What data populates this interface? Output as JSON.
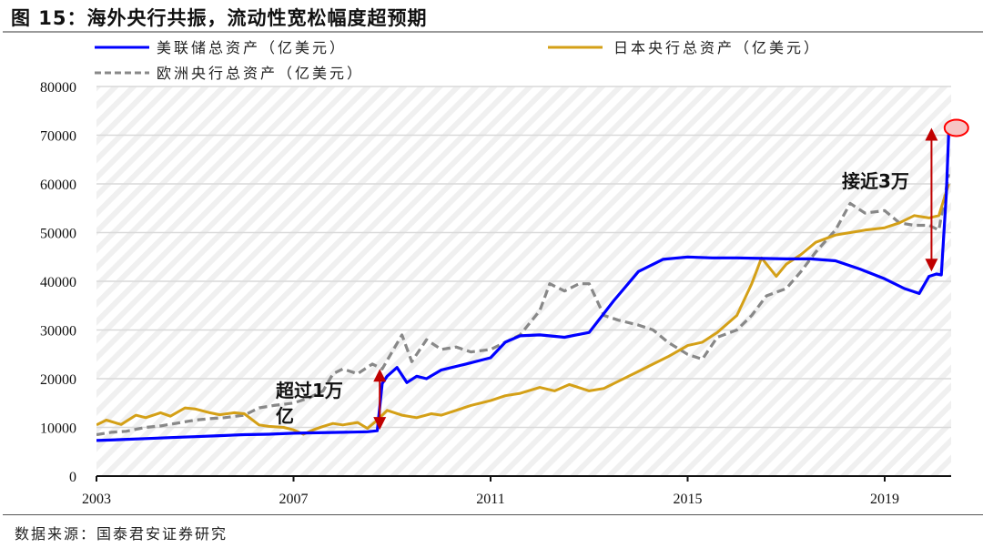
{
  "figure": {
    "title": "图 15：海外央行共振，流动性宽松幅度超预期",
    "source": "数据来源：国泰君安证券研究"
  },
  "colors": {
    "fed": "#0000ff",
    "boj": "#d4a017",
    "ecb": "#888888",
    "arrow": "#c00000",
    "highlight_stroke": "#ff0000",
    "highlight_fill": "#f7c4c4",
    "grid": "#d9d9d9",
    "hatch": "#ececec"
  },
  "chart_data": {
    "type": "line",
    "title": "海外央行共振，流动性宽松幅度超预期",
    "xlabel": "",
    "ylabel": "",
    "xlim": [
      2003,
      2020.35
    ],
    "ylim": [
      0,
      80000
    ],
    "yticks": [
      0,
      10000,
      20000,
      30000,
      40000,
      50000,
      60000,
      70000,
      80000
    ],
    "xticks": [
      2003,
      2007,
      2011,
      2015,
      2019
    ],
    "grid": true,
    "legend_position": "top",
    "series": [
      {
        "name": "美联储总资产（亿美元）",
        "key": "fed",
        "style": "solid",
        "x": [
          2003.0,
          2003.5,
          2004.0,
          2004.5,
          2005.0,
          2005.5,
          2006.0,
          2006.5,
          2007.0,
          2007.5,
          2008.0,
          2008.5,
          2008.7,
          2008.8,
          2008.9,
          2009.1,
          2009.3,
          2009.5,
          2009.7,
          2010.0,
          2010.5,
          2011.0,
          2011.3,
          2011.6,
          2012.0,
          2012.5,
          2013.0,
          2013.5,
          2014.0,
          2014.5,
          2015.0,
          2015.5,
          2016.0,
          2016.5,
          2017.0,
          2017.5,
          2018.0,
          2018.5,
          2019.0,
          2019.4,
          2019.7,
          2019.9,
          2020.05,
          2020.15,
          2020.25,
          2020.3
        ],
        "values": [
          7300,
          7500,
          7700,
          7900,
          8100,
          8300,
          8500,
          8600,
          8800,
          8900,
          9000,
          9100,
          9300,
          19000,
          20500,
          22300,
          19200,
          20500,
          20000,
          21800,
          23000,
          24300,
          27500,
          28800,
          29000,
          28500,
          29500,
          36000,
          42000,
          44500,
          45000,
          44800,
          44800,
          44700,
          44600,
          44600,
          44200,
          42500,
          40500,
          38500,
          37500,
          41000,
          41500,
          41300,
          58000,
          70800
        ]
      },
      {
        "name": "日本央行总资产（亿美元）",
        "key": "boj",
        "style": "solid",
        "x": [
          2003.0,
          2003.2,
          2003.5,
          2003.8,
          2004.0,
          2004.3,
          2004.5,
          2004.8,
          2005.0,
          2005.3,
          2005.5,
          2005.8,
          2006.0,
          2006.3,
          2006.5,
          2006.8,
          2007.0,
          2007.2,
          2007.4,
          2007.6,
          2007.8,
          2008.0,
          2008.3,
          2008.5,
          2008.7,
          2008.9,
          2009.2,
          2009.5,
          2009.8,
          2010.0,
          2010.3,
          2010.6,
          2011.0,
          2011.3,
          2011.6,
          2012.0,
          2012.3,
          2012.6,
          2013.0,
          2013.3,
          2013.6,
          2014.0,
          2014.3,
          2014.6,
          2015.0,
          2015.3,
          2015.6,
          2016.0,
          2016.3,
          2016.5,
          2016.8,
          2017.0,
          2017.3,
          2017.6,
          2018.0,
          2018.3,
          2018.6,
          2019.0,
          2019.3,
          2019.6,
          2019.9,
          2020.1,
          2020.3
        ],
        "values": [
          10500,
          11500,
          10600,
          12500,
          12000,
          13000,
          12300,
          14000,
          13800,
          13000,
          12600,
          13000,
          12800,
          10500,
          10200,
          10000,
          9500,
          8600,
          9500,
          10200,
          10800,
          10500,
          11000,
          9800,
          11500,
          13500,
          12500,
          12000,
          12800,
          12500,
          13500,
          14500,
          15500,
          16500,
          17000,
          18200,
          17500,
          18800,
          17500,
          18000,
          19500,
          21500,
          23000,
          24500,
          26800,
          27500,
          29500,
          33000,
          39500,
          44800,
          41000,
          43500,
          45500,
          48000,
          49500,
          50000,
          50500,
          51000,
          52000,
          53500,
          53000,
          53500,
          60000
        ]
      },
      {
        "name": "欧洲央行总资产（亿美元）",
        "key": "ecb",
        "style": "dashed",
        "x": [
          2003.0,
          2003.3,
          2003.6,
          2004.0,
          2004.3,
          2004.6,
          2005.0,
          2005.3,
          2005.6,
          2006.0,
          2006.3,
          2006.6,
          2007.0,
          2007.3,
          2007.6,
          2007.8,
          2008.0,
          2008.3,
          2008.6,
          2008.8,
          2009.0,
          2009.2,
          2009.4,
          2009.7,
          2010.0,
          2010.3,
          2010.6,
          2011.0,
          2011.3,
          2011.6,
          2012.0,
          2012.2,
          2012.5,
          2012.8,
          2013.0,
          2013.3,
          2013.6,
          2014.0,
          2014.3,
          2014.6,
          2015.0,
          2015.3,
          2015.6,
          2016.0,
          2016.3,
          2016.6,
          2017.0,
          2017.3,
          2017.6,
          2018.0,
          2018.3,
          2018.6,
          2019.0,
          2019.3,
          2019.6,
          2019.9,
          2020.1,
          2020.3
        ],
        "values": [
          8500,
          9000,
          9200,
          10000,
          10300,
          10800,
          11500,
          11800,
          12000,
          12500,
          14000,
          14500,
          15000,
          16000,
          17500,
          21000,
          22000,
          21000,
          23000,
          22000,
          25500,
          29000,
          23500,
          28000,
          26000,
          26500,
          25500,
          26000,
          27500,
          29000,
          34000,
          39500,
          38000,
          39500,
          39500,
          33000,
          32000,
          31000,
          30000,
          27500,
          25000,
          24000,
          28500,
          30000,
          33000,
          37000,
          38500,
          42000,
          46000,
          50500,
          56000,
          54000,
          54500,
          52000,
          51500,
          51500,
          50500,
          62000
        ]
      }
    ],
    "annotations": [
      {
        "text_line1": "超过1万",
        "text_line2": "亿",
        "type": "double-arrow",
        "x": 2008.75,
        "y_from": 9500,
        "y_to": 22000
      },
      {
        "text_line1": "接近3万",
        "type": "double-arrow",
        "x": 2019.95,
        "y_from": 42000,
        "y_to": 71500
      },
      {
        "type": "ellipse-highlight",
        "x": 2020.4,
        "y": 71500
      }
    ]
  },
  "legend": {
    "fed_label": "美联储总资产（亿美元）",
    "boj_label": "日本央行总资产（亿美元）",
    "ecb_label": "欧洲央行总资产（亿美元）"
  },
  "axis": {
    "y_labels": [
      "0",
      "10000",
      "20000",
      "30000",
      "40000",
      "50000",
      "60000",
      "70000",
      "80000"
    ],
    "x_labels": [
      "2003",
      "2007",
      "2011",
      "2015",
      "2019"
    ]
  },
  "annotations": {
    "left_line1": "超过1万",
    "left_line2": "亿",
    "right": "接近3万"
  }
}
